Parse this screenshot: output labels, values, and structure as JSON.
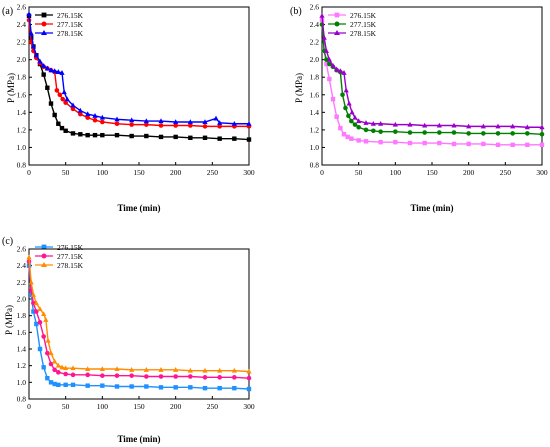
{
  "figure": {
    "panels": [
      {
        "label": "(a)",
        "xlabel": "Time (min)",
        "ylabel": "P (MPa)",
        "xlim": [
          0,
          300
        ],
        "ylim": [
          0.8,
          2.6
        ],
        "xticks": [
          0,
          50,
          100,
          150,
          200,
          250,
          300
        ],
        "yticks": [
          0.8,
          1.0,
          1.2,
          1.4,
          1.6,
          1.8,
          2.0,
          2.2,
          2.4,
          2.6
        ],
        "legend": [
          "276.15K",
          "277.15K",
          "278.15K"
        ]
      },
      {
        "label": "(b)",
        "xlabel": "Time (min)",
        "ylabel": "P (MPa)",
        "xlim": [
          0,
          300
        ],
        "ylim": [
          0.8,
          2.6
        ],
        "xticks": [
          0,
          50,
          100,
          150,
          200,
          250,
          300
        ],
        "yticks": [
          0.8,
          1.0,
          1.2,
          1.4,
          1.6,
          1.8,
          2.0,
          2.2,
          2.4,
          2.6
        ],
        "legend": [
          "276.15K",
          "277.15K",
          "278.15K"
        ]
      },
      {
        "label": "(c)",
        "xlabel": "Time (min)",
        "ylabel": "P (MPa)",
        "xlim": [
          0,
          300
        ],
        "ylim": [
          0.8,
          2.6
        ],
        "xticks": [
          0,
          50,
          100,
          150,
          200,
          250,
          300
        ],
        "yticks": [
          0.8,
          1.0,
          1.2,
          1.4,
          1.6,
          1.8,
          2.0,
          2.2,
          2.4,
          2.6
        ],
        "legend": [
          "276.15K",
          "277.15K",
          "278.15K"
        ]
      }
    ]
  },
  "chart_data": [
    {
      "type": "line",
      "panel": "(a)",
      "xlabel": "Time (min)",
      "ylabel": "P (MPa)",
      "xlim": [
        0,
        300
      ],
      "ylim": [
        0.8,
        2.6
      ],
      "grid": false,
      "legend_position": "top-left",
      "series": [
        {
          "name": "276.15K",
          "color": "#000000",
          "marker": "square",
          "points": [
            [
              0,
              2.5
            ],
            [
              3,
              2.25
            ],
            [
              6,
              2.15
            ],
            [
              10,
              2.05
            ],
            [
              15,
              1.95
            ],
            [
              20,
              1.83
            ],
            [
              25,
              1.68
            ],
            [
              30,
              1.5
            ],
            [
              35,
              1.37
            ],
            [
              40,
              1.27
            ],
            [
              45,
              1.22
            ],
            [
              50,
              1.19
            ],
            [
              60,
              1.16
            ],
            [
              70,
              1.15
            ],
            [
              80,
              1.14
            ],
            [
              90,
              1.14
            ],
            [
              100,
              1.14
            ],
            [
              120,
              1.14
            ],
            [
              140,
              1.13
            ],
            [
              160,
              1.13
            ],
            [
              180,
              1.12
            ],
            [
              200,
              1.12
            ],
            [
              220,
              1.11
            ],
            [
              240,
              1.11
            ],
            [
              260,
              1.1
            ],
            [
              280,
              1.1
            ],
            [
              300,
              1.09
            ]
          ]
        },
        {
          "name": "277.15K",
          "color": "#ff0000",
          "marker": "circle",
          "points": [
            [
              0,
              2.45
            ],
            [
              3,
              2.2
            ],
            [
              6,
              2.1
            ],
            [
              10,
              2.02
            ],
            [
              15,
              1.96
            ],
            [
              20,
              1.92
            ],
            [
              25,
              1.9
            ],
            [
              30,
              1.88
            ],
            [
              35,
              1.86
            ],
            [
              38,
              1.65
            ],
            [
              42,
              1.6
            ],
            [
              46,
              1.55
            ],
            [
              50,
              1.51
            ],
            [
              60,
              1.44
            ],
            [
              70,
              1.38
            ],
            [
              80,
              1.34
            ],
            [
              90,
              1.31
            ],
            [
              100,
              1.29
            ],
            [
              120,
              1.27
            ],
            [
              140,
              1.26
            ],
            [
              160,
              1.26
            ],
            [
              180,
              1.25
            ],
            [
              200,
              1.25
            ],
            [
              220,
              1.25
            ],
            [
              240,
              1.24
            ],
            [
              260,
              1.24
            ],
            [
              280,
              1.24
            ],
            [
              300,
              1.24
            ]
          ]
        },
        {
          "name": "278.15K",
          "color": "#0000ff",
          "marker": "triangle",
          "points": [
            [
              0,
              2.52
            ],
            [
              3,
              2.3
            ],
            [
              6,
              2.15
            ],
            [
              10,
              2.05
            ],
            [
              15,
              1.98
            ],
            [
              20,
              1.93
            ],
            [
              25,
              1.9
            ],
            [
              30,
              1.88
            ],
            [
              35,
              1.87
            ],
            [
              40,
              1.86
            ],
            [
              45,
              1.85
            ],
            [
              48,
              1.63
            ],
            [
              52,
              1.55
            ],
            [
              60,
              1.48
            ],
            [
              70,
              1.42
            ],
            [
              80,
              1.38
            ],
            [
              90,
              1.36
            ],
            [
              100,
              1.34
            ],
            [
              120,
              1.32
            ],
            [
              140,
              1.31
            ],
            [
              160,
              1.3
            ],
            [
              180,
              1.3
            ],
            [
              200,
              1.29
            ],
            [
              220,
              1.29
            ],
            [
              240,
              1.29
            ],
            [
              255,
              1.33
            ],
            [
              260,
              1.28
            ],
            [
              280,
              1.27
            ],
            [
              300,
              1.27
            ]
          ]
        }
      ]
    },
    {
      "type": "line",
      "panel": "(b)",
      "xlabel": "Time (min)",
      "ylabel": "P (MPa)",
      "xlim": [
        0,
        300
      ],
      "ylim": [
        0.8,
        2.6
      ],
      "grid": false,
      "legend_position": "top-left",
      "series": [
        {
          "name": "276.15K",
          "color": "#ff77ff",
          "marker": "square",
          "points": [
            [
              0,
              2.45
            ],
            [
              3,
              2.1
            ],
            [
              6,
              1.95
            ],
            [
              10,
              1.78
            ],
            [
              15,
              1.55
            ],
            [
              20,
              1.35
            ],
            [
              25,
              1.22
            ],
            [
              30,
              1.15
            ],
            [
              35,
              1.12
            ],
            [
              40,
              1.1
            ],
            [
              50,
              1.08
            ],
            [
              60,
              1.07
            ],
            [
              80,
              1.06
            ],
            [
              100,
              1.06
            ],
            [
              120,
              1.05
            ],
            [
              140,
              1.05
            ],
            [
              160,
              1.05
            ],
            [
              180,
              1.04
            ],
            [
              200,
              1.04
            ],
            [
              220,
              1.04
            ],
            [
              240,
              1.03
            ],
            [
              260,
              1.03
            ],
            [
              280,
              1.03
            ],
            [
              300,
              1.03
            ]
          ]
        },
        {
          "name": "277.15K",
          "color": "#008000",
          "marker": "circle",
          "points": [
            [
              0,
              2.4
            ],
            [
              3,
              2.1
            ],
            [
              6,
              2.0
            ],
            [
              10,
              1.95
            ],
            [
              15,
              1.92
            ],
            [
              20,
              1.88
            ],
            [
              25,
              1.86
            ],
            [
              28,
              1.6
            ],
            [
              32,
              1.45
            ],
            [
              36,
              1.36
            ],
            [
              40,
              1.3
            ],
            [
              45,
              1.26
            ],
            [
              50,
              1.23
            ],
            [
              60,
              1.2
            ],
            [
              70,
              1.19
            ],
            [
              80,
              1.18
            ],
            [
              100,
              1.18
            ],
            [
              120,
              1.17
            ],
            [
              140,
              1.17
            ],
            [
              160,
              1.17
            ],
            [
              180,
              1.17
            ],
            [
              200,
              1.16
            ],
            [
              220,
              1.16
            ],
            [
              240,
              1.16
            ],
            [
              260,
              1.16
            ],
            [
              280,
              1.16
            ],
            [
              300,
              1.15
            ]
          ]
        },
        {
          "name": "278.15K",
          "color": "#9900cc",
          "marker": "triangle",
          "points": [
            [
              0,
              2.5
            ],
            [
              3,
              2.25
            ],
            [
              6,
              2.1
            ],
            [
              10,
              2.0
            ],
            [
              15,
              1.93
            ],
            [
              20,
              1.89
            ],
            [
              25,
              1.87
            ],
            [
              30,
              1.85
            ],
            [
              33,
              1.65
            ],
            [
              37,
              1.5
            ],
            [
              41,
              1.4
            ],
            [
              45,
              1.34
            ],
            [
              50,
              1.3
            ],
            [
              60,
              1.28
            ],
            [
              70,
              1.27
            ],
            [
              80,
              1.27
            ],
            [
              100,
              1.26
            ],
            [
              120,
              1.26
            ],
            [
              140,
              1.25
            ],
            [
              160,
              1.25
            ],
            [
              180,
              1.25
            ],
            [
              200,
              1.24
            ],
            [
              220,
              1.24
            ],
            [
              240,
              1.24
            ],
            [
              260,
              1.24
            ],
            [
              280,
              1.23
            ],
            [
              300,
              1.23
            ]
          ]
        }
      ]
    },
    {
      "type": "line",
      "panel": "(c)",
      "xlabel": "Time (min)",
      "ylabel": "P (MPa)",
      "xlim": [
        0,
        300
      ],
      "ylim": [
        0.8,
        2.6
      ],
      "grid": false,
      "legend_position": "top-left",
      "series": [
        {
          "name": "276.15K",
          "color": "#1e90ff",
          "marker": "square",
          "points": [
            [
              0,
              2.4
            ],
            [
              3,
              2.05
            ],
            [
              6,
              1.85
            ],
            [
              10,
              1.7
            ],
            [
              15,
              1.4
            ],
            [
              20,
              1.18
            ],
            [
              25,
              1.05
            ],
            [
              30,
              1.0
            ],
            [
              35,
              0.98
            ],
            [
              40,
              0.97
            ],
            [
              50,
              0.97
            ],
            [
              60,
              0.97
            ],
            [
              80,
              0.96
            ],
            [
              100,
              0.96
            ],
            [
              120,
              0.95
            ],
            [
              140,
              0.95
            ],
            [
              160,
              0.95
            ],
            [
              180,
              0.94
            ],
            [
              200,
              0.94
            ],
            [
              220,
              0.94
            ],
            [
              240,
              0.93
            ],
            [
              260,
              0.93
            ],
            [
              280,
              0.93
            ],
            [
              300,
              0.92
            ]
          ]
        },
        {
          "name": "277.15K",
          "color": "#ff1493",
          "marker": "circle",
          "points": [
            [
              0,
              2.45
            ],
            [
              3,
              2.1
            ],
            [
              6,
              1.95
            ],
            [
              10,
              1.85
            ],
            [
              15,
              1.72
            ],
            [
              20,
              1.55
            ],
            [
              25,
              1.35
            ],
            [
              30,
              1.22
            ],
            [
              35,
              1.15
            ],
            [
              40,
              1.12
            ],
            [
              50,
              1.1
            ],
            [
              60,
              1.09
            ],
            [
              80,
              1.09
            ],
            [
              100,
              1.08
            ],
            [
              120,
              1.08
            ],
            [
              140,
              1.08
            ],
            [
              160,
              1.07
            ],
            [
              180,
              1.07
            ],
            [
              200,
              1.07
            ],
            [
              220,
              1.07
            ],
            [
              240,
              1.06
            ],
            [
              260,
              1.06
            ],
            [
              280,
              1.06
            ],
            [
              300,
              1.05
            ]
          ]
        },
        {
          "name": "278.15K",
          "color": "#ff8c00",
          "marker": "triangle",
          "points": [
            [
              0,
              2.5
            ],
            [
              3,
              2.2
            ],
            [
              6,
              2.05
            ],
            [
              10,
              1.95
            ],
            [
              15,
              1.88
            ],
            [
              20,
              1.82
            ],
            [
              23,
              1.75
            ],
            [
              26,
              1.5
            ],
            [
              30,
              1.35
            ],
            [
              35,
              1.25
            ],
            [
              40,
              1.2
            ],
            [
              45,
              1.18
            ],
            [
              50,
              1.17
            ],
            [
              60,
              1.17
            ],
            [
              80,
              1.16
            ],
            [
              100,
              1.16
            ],
            [
              120,
              1.16
            ],
            [
              140,
              1.15
            ],
            [
              160,
              1.15
            ],
            [
              180,
              1.15
            ],
            [
              200,
              1.15
            ],
            [
              220,
              1.14
            ],
            [
              240,
              1.14
            ],
            [
              260,
              1.14
            ],
            [
              280,
              1.14
            ],
            [
              300,
              1.13
            ]
          ]
        }
      ]
    }
  ]
}
